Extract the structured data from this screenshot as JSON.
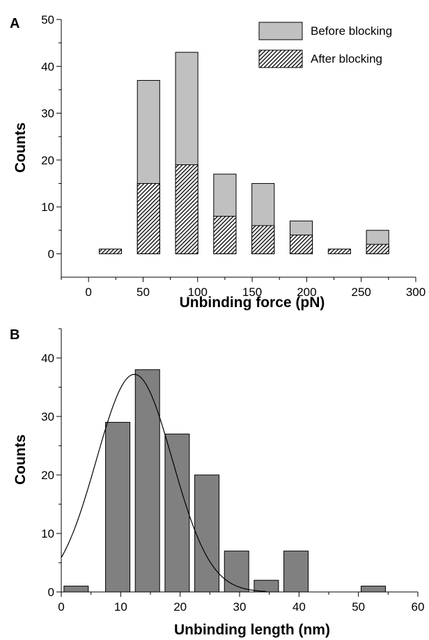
{
  "chart_data": [
    {
      "panel": "A",
      "type": "bar",
      "xlabel": "Unbinding force (pN)",
      "ylabel": "Counts",
      "xlim": [
        -25,
        300
      ],
      "ylim": [
        -5,
        50
      ],
      "xticks": [
        "0",
        "50",
        "100",
        "150",
        "200",
        "250",
        "300"
      ],
      "yticks": [
        "0",
        "10",
        "20",
        "30",
        "40",
        "50"
      ],
      "bin_width": 25,
      "centers": [
        20,
        55,
        90,
        125,
        160,
        195,
        230,
        265
      ],
      "series": [
        {
          "name": "Before blocking",
          "color": "#c0c0c0",
          "values": [
            0,
            37,
            43,
            17,
            15,
            7,
            0,
            5
          ]
        },
        {
          "name": "After blocking",
          "pattern": "hatched",
          "values": [
            1,
            15,
            19,
            8,
            6,
            4,
            1,
            2
          ]
        }
      ],
      "legend_position": "top-right"
    },
    {
      "panel": "B",
      "type": "bar",
      "xlabel": "Unbinding length (nm)",
      "ylabel": "Counts",
      "xlim": [
        0,
        60
      ],
      "ylim": [
        0,
        45
      ],
      "xticks": [
        "0",
        "10",
        "20",
        "30",
        "40",
        "50",
        "60"
      ],
      "yticks": [
        "0",
        "10",
        "20",
        "30",
        "40"
      ],
      "bin_width": 5,
      "centers": [
        2.5,
        9.5,
        14.5,
        19.5,
        24.5,
        29.5,
        34.5,
        39.5,
        52.5
      ],
      "values": [
        1,
        29,
        38,
        27,
        20,
        7,
        2,
        7,
        1
      ],
      "bar_color": "#808080",
      "fit_curve": {
        "type": "gaussian",
        "amplitude": 37.2,
        "center": 12.3,
        "sigma": 6.4,
        "offset": 0
      }
    }
  ]
}
